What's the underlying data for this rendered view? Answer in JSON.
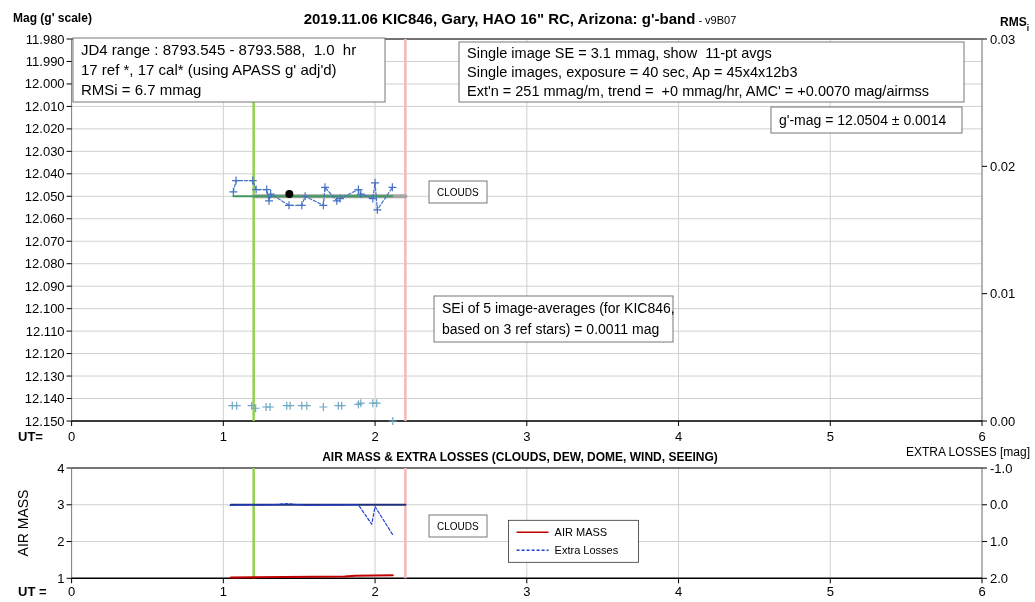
{
  "chart_data": [
    {
      "type": "line",
      "title": "2019.11.06 KIC846, Gary, HAO 16\" RC, Arizona: g'-band",
      "subtitle": "- v9B07",
      "ylabel": "Mag (g' scale)",
      "y2label": "RMS$_{i}$",
      "xlabel": "UT=",
      "xlim": [
        0,
        6
      ],
      "xticks": [
        0,
        1,
        2,
        3,
        4,
        5,
        6
      ],
      "ylim": [
        12.15,
        11.98
      ],
      "yticks": [
        {
          "value": 11.98,
          "label": "11.980"
        },
        {
          "value": 11.99,
          "label": "11.990"
        },
        {
          "value": 12.0,
          "label": "12.000"
        },
        {
          "value": 12.01,
          "label": "12.010"
        },
        {
          "value": 12.02,
          "label": "12.020"
        },
        {
          "value": 12.03,
          "label": "12.030"
        },
        {
          "value": 12.04,
          "label": "12.040"
        },
        {
          "value": 12.05,
          "label": "12.050"
        },
        {
          "value": 12.06,
          "label": "12.060"
        },
        {
          "value": 12.07,
          "label": "12.070"
        },
        {
          "value": 12.08,
          "label": "12.080"
        },
        {
          "value": 12.09,
          "label": "12.090"
        },
        {
          "value": 12.1,
          "label": "12.100"
        },
        {
          "value": 12.11,
          "label": "12.110"
        },
        {
          "value": 12.12,
          "label": "12.120"
        },
        {
          "value": 12.13,
          "label": "12.130"
        },
        {
          "value": 12.14,
          "label": "12.140"
        },
        {
          "value": 12.15,
          "label": "12.150"
        }
      ],
      "y2lim": [
        0,
        0.03
      ],
      "y2ticks": [
        {
          "value": 0,
          "label": "0.00"
        },
        {
          "value": 0.01,
          "label": "0.01"
        },
        {
          "value": 0.02,
          "label": "0.02"
        },
        {
          "value": 0.03,
          "label": "0.03"
        }
      ],
      "grid": true,
      "series": [
        {
          "type": "line",
          "color": "#a6a6a6",
          "line_style": "solid",
          "marker": "none",
          "x": [
            1.2,
            2.2
          ],
          "values": [
            12.05,
            12.05
          ]
        },
        {
          "type": "line",
          "color": "#3f9a5f",
          "line_style": "solid",
          "marker": "none",
          "x": [
            1.066,
            2.114
          ],
          "values": [
            12.05,
            12.05
          ]
        },
        {
          "type": "line",
          "color": "#4472c4",
          "line_style": "dashed",
          "marker": "cross",
          "x": [
            1.066,
            1.084,
            1.194,
            1.216,
            1.286,
            1.301,
            1.312,
            1.433,
            1.517,
            1.539,
            1.659,
            1.67,
            1.748,
            1.769,
            1.89,
            1.906,
            1.985,
            2.0,
            2.015,
            2.114
          ],
          "values": [
            12.048,
            12.043,
            12.043,
            12.047,
            12.047,
            12.052,
            12.049,
            12.054,
            12.054,
            12.05,
            12.054,
            12.046,
            12.052,
            12.051,
            12.047,
            12.049,
            12.051,
            12.044,
            12.056,
            12.046
          ]
        },
        {
          "type": "scatter",
          "color": "#000000",
          "marker": "circle",
          "x": [
            1.435
          ],
          "values": [
            12.049
          ]
        },
        {
          "type": "scatter",
          "axis": "y2",
          "color": "#6fa8c4",
          "marker": "cross",
          "x": [
            1.059,
            1.088,
            1.187,
            1.213,
            1.282,
            1.308,
            1.418,
            1.44,
            1.517,
            1.55,
            1.659,
            1.758,
            1.78,
            1.89,
            1.906,
            1.985,
            2.011,
            2.117
          ],
          "values": [
            0.0012,
            0.0012,
            0.0012,
            0.001,
            0.0011,
            0.0011,
            0.0012,
            0.0012,
            0.0012,
            0.0012,
            0.0011,
            0.0012,
            0.0012,
            0.0013,
            0.0014,
            0.0014,
            0.0014,
            0.0
          ]
        }
      ],
      "ref_lines": [
        {
          "axis": "x",
          "value": 1.2,
          "color": "#92d050"
        },
        {
          "axis": "x",
          "value": 2.2,
          "color": "#f5b8b8"
        }
      ],
      "annotations": [
        "JD4 range : 8793.545 - 8793.588,  1.0  hr\n17 ref *, 17 cal* (using APASS g' adj'd)\nRMSi = 6.7 mmag",
        "Single image SE = 3.1 mmag, show  11-pt avgs\nSingle images, exposure = 40 sec, Ap = 45x4x12b3\nExt'n = 251 mmag/m, trend =  +0 mmag/hr, AMC' = +0.0070 mag/airmss",
        "g'-mag = 12.0504 ± 0.0014",
        "CLOUDS",
        "SEi of 5 image-averages (for KIC846,\nbased on 3 ref stars) = 0.0011 mag"
      ]
    },
    {
      "type": "line",
      "title": "AIR MASS & EXTRA LOSSES (CLOUDS, DEW, DOME, WIND, SEEING)",
      "ylabel": "AIR MASS",
      "y2label": "EXTRA LOSSES [mag]",
      "xlabel": "UT =",
      "xlim": [
        0,
        6
      ],
      "xticks": [
        0,
        1,
        2,
        3,
        4,
        5,
        6
      ],
      "ylim": [
        1,
        4
      ],
      "yticks": [
        1,
        2,
        3,
        4
      ],
      "y2lim": [
        2.0,
        -1.0
      ],
      "y2ticks": [
        {
          "value": 2,
          "label": "2.0"
        },
        {
          "value": 1,
          "label": "1.0"
        },
        {
          "value": 0,
          "label": "0.0"
        },
        {
          "value": -1,
          "label": "-1.0"
        }
      ],
      "grid": true,
      "legend": "bottom",
      "series": [
        {
          "type": "line",
          "axis": "y2",
          "color": "#1f2f7a",
          "line_style": "solid",
          "marker": "none",
          "x": [
            1.05,
            2.2
          ],
          "values": [
            0,
            0
          ]
        },
        {
          "name": "AIR MASS",
          "type": "line",
          "color": "#c00000",
          "line_style": "solid",
          "marker": "none",
          "x": [
            1.05,
            1.2,
            1.8,
            1.87,
            2.117
          ],
          "values": [
            1.02,
            1.03,
            1.05,
            1.07,
            1.08
          ]
        },
        {
          "name": "Extra Losses",
          "type": "line",
          "axis": "y2",
          "color": "#1f3fcf",
          "line_style": "dashed",
          "marker": "none",
          "x": [
            1.044,
            1.15,
            1.25,
            1.32,
            1.42,
            1.5,
            1.55,
            1.65,
            1.75,
            1.85,
            1.89,
            1.978,
            2.0,
            2.117
          ],
          "values": [
            0.02,
            0.0,
            0.01,
            0.0,
            -0.03,
            0.0,
            0.02,
            0.01,
            0.01,
            0.0,
            0.0,
            0.53,
            0.05,
            0.82
          ]
        }
      ],
      "ref_lines": [
        {
          "axis": "x",
          "value": 1.2,
          "color": "#92d050"
        },
        {
          "axis": "x",
          "value": 2.2,
          "color": "#f5b8b8"
        }
      ],
      "annotations": [
        "CLOUDS"
      ]
    }
  ]
}
